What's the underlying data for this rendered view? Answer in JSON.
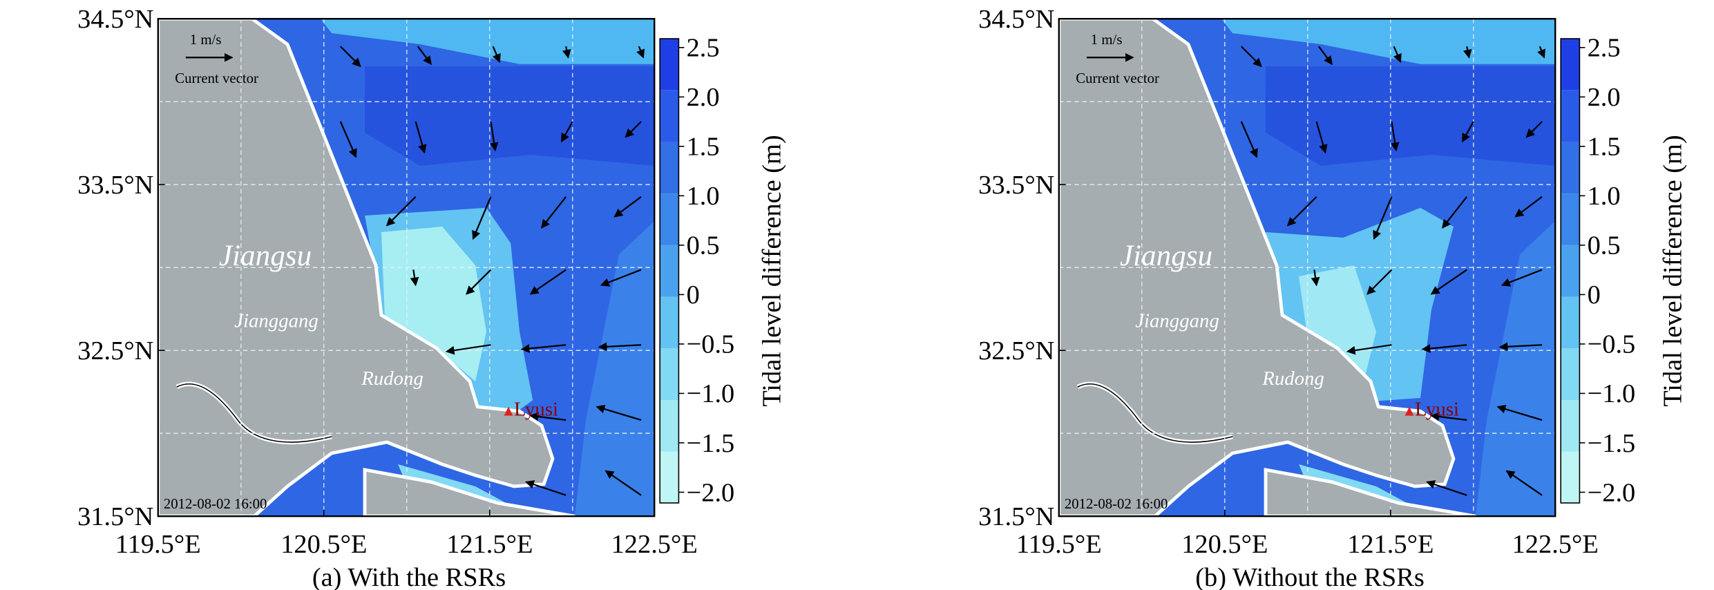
{
  "panels": [
    {
      "caption": "(a) With the RSRs",
      "region": "Jiangsu",
      "city1": "Jianggang",
      "city2": "Rudong",
      "station": "Lyusi",
      "scale": "1 m/s",
      "legend": "Current vector",
      "time": "2012-08-02 16:00"
    },
    {
      "caption": "(b) Without the RSRs",
      "region": "Jiangsu",
      "city1": "Jianggang",
      "city2": "Rudong",
      "station": "Lyusi",
      "scale": "1 m/s",
      "legend": "Current vector",
      "time": "2012-08-02 16:00"
    }
  ],
  "x_ticks": [
    "119.5°E",
    "120.5°E",
    "121.5°E",
    "122.5°E"
  ],
  "y_ticks": [
    "34.5°N",
    "33.5°N",
    "32.5°N",
    "31.5°N"
  ],
  "colorbar": {
    "label": "Tidal level difference (m)",
    "ticks": [
      "2.5",
      "2.0",
      "1.5",
      "1.0",
      "0.5",
      "0",
      "−0.5",
      "−1.0",
      "−1.5",
      "−2.0"
    ]
  }
}
